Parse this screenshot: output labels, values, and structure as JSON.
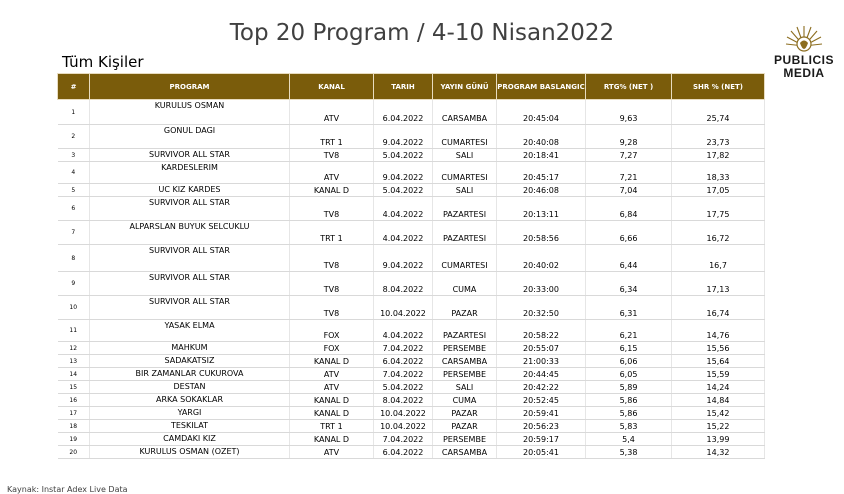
{
  "title": "Top 20 Program / 4-10 Nisan2022",
  "subtitle": "Tüm Kişiler",
  "logo": {
    "line1": "PUBLICIS",
    "line2": "MEDIA"
  },
  "columns": [
    "#",
    "PROGRAM",
    "KANAL",
    "TARIH",
    "YAYIN GÜNÜ",
    "PROGRAM BASLANGIC",
    "RTG% (NET )",
    "SHR % (NET)"
  ],
  "rows": [
    {
      "no": "1",
      "program": "KURULUS OSMAN",
      "kanal": "ATV",
      "tarih": "6.04.2022",
      "gun": "CARSAMBA",
      "baslangic": "20:45:04",
      "rtg": "9,63",
      "shr": "25,74"
    },
    {
      "no": "2",
      "program": "GONUL DAGI",
      "kanal": "TRT 1",
      "tarih": "9.04.2022",
      "gun": "CUMARTESI",
      "baslangic": "20:40:08",
      "rtg": "9,28",
      "shr": "23,73"
    },
    {
      "no": "3",
      "program": "SURVIVOR ALL STAR",
      "kanal": "TV8",
      "tarih": "5.04.2022",
      "gun": "SALI",
      "baslangic": "20:18:41",
      "rtg": "7,27",
      "shr": "17,82"
    },
    {
      "no": "4",
      "program": "KARDESLERIM",
      "kanal": "ATV",
      "tarih": "9.04.2022",
      "gun": "CUMARTESI",
      "baslangic": "20:45:17",
      "rtg": "7,21",
      "shr": "18,33"
    },
    {
      "no": "5",
      "program": "UC KIZ KARDES",
      "kanal": "KANAL D",
      "tarih": "5.04.2022",
      "gun": "SALI",
      "baslangic": "20:46:08",
      "rtg": "7,04",
      "shr": "17,05"
    },
    {
      "no": "6",
      "program": "SURVIVOR ALL STAR",
      "kanal": "TV8",
      "tarih": "4.04.2022",
      "gun": "PAZARTESI",
      "baslangic": "20:13:11",
      "rtg": "6,84",
      "shr": "17,75"
    },
    {
      "no": "7",
      "program": "ALPARSLAN BUYUK SELCUKLU",
      "kanal": "TRT 1",
      "tarih": "4.04.2022",
      "gun": "PAZARTESI",
      "baslangic": "20:58:56",
      "rtg": "6,66",
      "shr": "16,72"
    },
    {
      "no": "8",
      "program": "SURVIVOR ALL STAR",
      "kanal": "TV8",
      "tarih": "9.04.2022",
      "gun": "CUMARTESI",
      "baslangic": "20:40:02",
      "rtg": "6,44",
      "shr": "16,7"
    },
    {
      "no": "9",
      "program": "SURVIVOR ALL STAR",
      "kanal": "TV8",
      "tarih": "8.04.2022",
      "gun": "CUMA",
      "baslangic": "20:33:00",
      "rtg": "6,34",
      "shr": "17,13"
    },
    {
      "no": "10",
      "program": "SURVIVOR ALL STAR",
      "kanal": "TV8",
      "tarih": "10.04.2022",
      "gun": "PAZAR",
      "baslangic": "20:32:50",
      "rtg": "6,31",
      "shr": "16,74"
    },
    {
      "no": "11",
      "program": "YASAK ELMA",
      "kanal": "FOX",
      "tarih": "4.04.2022",
      "gun": "PAZARTESI",
      "baslangic": "20:58:22",
      "rtg": "6,21",
      "shr": "14,76"
    },
    {
      "no": "12",
      "program": "MAHKUM",
      "kanal": "FOX",
      "tarih": "7.04.2022",
      "gun": "PERSEMBE",
      "baslangic": "20:55:07",
      "rtg": "6,15",
      "shr": "15,56"
    },
    {
      "no": "13",
      "program": "SADAKATSIZ",
      "kanal": "KANAL D",
      "tarih": "6.04.2022",
      "gun": "CARSAMBA",
      "baslangic": "21:00:33",
      "rtg": "6,06",
      "shr": "15,64"
    },
    {
      "no": "14",
      "program": "BIR ZAMANLAR CUKUROVA",
      "kanal": "ATV",
      "tarih": "7.04.2022",
      "gun": "PERSEMBE",
      "baslangic": "20:44:45",
      "rtg": "6,05",
      "shr": "15,59"
    },
    {
      "no": "15",
      "program": "DESTAN",
      "kanal": "ATV",
      "tarih": "5.04.2022",
      "gun": "SALI",
      "baslangic": "20:42:22",
      "rtg": "5,89",
      "shr": "14,24"
    },
    {
      "no": "16",
      "program": "ARKA SOKAKLAR",
      "kanal": "KANAL D",
      "tarih": "8.04.2022",
      "gun": "CUMA",
      "baslangic": "20:52:45",
      "rtg": "5,86",
      "shr": "14,84"
    },
    {
      "no": "17",
      "program": "YARGI",
      "kanal": "KANAL D",
      "tarih": "10.04.2022",
      "gun": "PAZAR",
      "baslangic": "20:59:41",
      "rtg": "5,86",
      "shr": "15,42"
    },
    {
      "no": "18",
      "program": "TESKILAT",
      "kanal": "TRT 1",
      "tarih": "10.04.2022",
      "gun": "PAZAR",
      "baslangic": "20:56:23",
      "rtg": "5,83",
      "shr": "15,22"
    },
    {
      "no": "19",
      "program": "CAMDAKI KIZ",
      "kanal": "KANAL D",
      "tarih": "7.04.2022",
      "gun": "PERSEMBE",
      "baslangic": "20:59:17",
      "rtg": "5,4",
      "shr": "13,99"
    },
    {
      "no": "20",
      "program": "KURULUS OSMAN (OZET)",
      "kanal": "ATV",
      "tarih": "6.04.2022",
      "gun": "CARSAMBA",
      "baslangic": "20:05:41",
      "rtg": "5,38",
      "shr": "14,32"
    }
  ],
  "source": "Kaynak: Instar  Adex Live Data"
}
